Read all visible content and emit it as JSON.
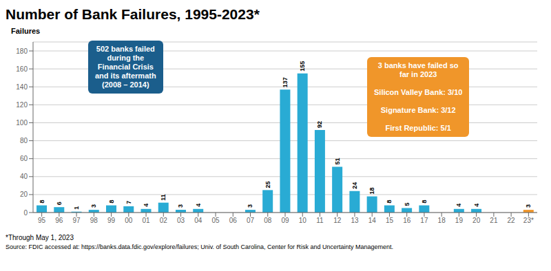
{
  "chart_data": {
    "type": "bar",
    "title": "Number of Bank Failures, 1995-2023*",
    "ylabel": "Failures",
    "categories": [
      "95",
      "96",
      "97",
      "98",
      "99",
      "00",
      "01",
      "02",
      "03",
      "04",
      "05",
      "06",
      "07",
      "08",
      "09",
      "10",
      "11",
      "12",
      "13",
      "14",
      "15",
      "16",
      "17",
      "18",
      "19",
      "20",
      "21",
      "22",
      "23*"
    ],
    "values": [
      8,
      6,
      1,
      3,
      8,
      7,
      4,
      11,
      3,
      4,
      0,
      0,
      3,
      25,
      137,
      155,
      92,
      51,
      24,
      18,
      8,
      5,
      8,
      0,
      4,
      4,
      0,
      0,
      3
    ],
    "value_labels": [
      "8",
      "6",
      "1",
      "3",
      "8",
      "7",
      "4",
      "11",
      "3",
      "4",
      null,
      null,
      "3",
      "25",
      "137",
      "155",
      "92",
      "51",
      "24",
      "18",
      "8",
      "5",
      "8",
      null,
      "4",
      "4",
      null,
      null,
      "3"
    ],
    "colors": [
      "#29ABD4",
      "#29ABD4",
      "#29ABD4",
      "#29ABD4",
      "#29ABD4",
      "#29ABD4",
      "#29ABD4",
      "#29ABD4",
      "#29ABD4",
      "#29ABD4",
      "#29ABD4",
      "#29ABD4",
      "#29ABD4",
      "#29ABD4",
      "#29ABD4",
      "#29ABD4",
      "#29ABD4",
      "#29ABD4",
      "#29ABD4",
      "#29ABD4",
      "#29ABD4",
      "#29ABD4",
      "#29ABD4",
      "#29ABD4",
      "#29ABD4",
      "#29ABD4",
      "#29ABD4",
      "#29ABD4",
      "#F0962A"
    ],
    "ylim": [
      0,
      190
    ],
    "yticks": [
      0,
      20,
      40,
      60,
      80,
      100,
      120,
      140,
      160,
      180
    ],
    "grid": true,
    "data_labels": true,
    "annotations": [
      {
        "text": "502 banks failed\nduring the\nFinancial Crisis\nand its aftermath\n(2008 – 2014)",
        "color": "#1B5E8C"
      },
      {
        "text": "3 banks have failed so\nfar in 2023\n\nSilicon Valley Bank: 3/10\n\nSignature Bank: 3/12\n\nFirst Republic: 5/1",
        "color": "#F0962A"
      }
    ],
    "footer": "*Through May 1, 2023",
    "source": "Source: FDIC accessed at: https://banks.data.fdic.gov/explore/failures; Univ. of South Carolina, Center for Risk and Uncertainty Management."
  }
}
